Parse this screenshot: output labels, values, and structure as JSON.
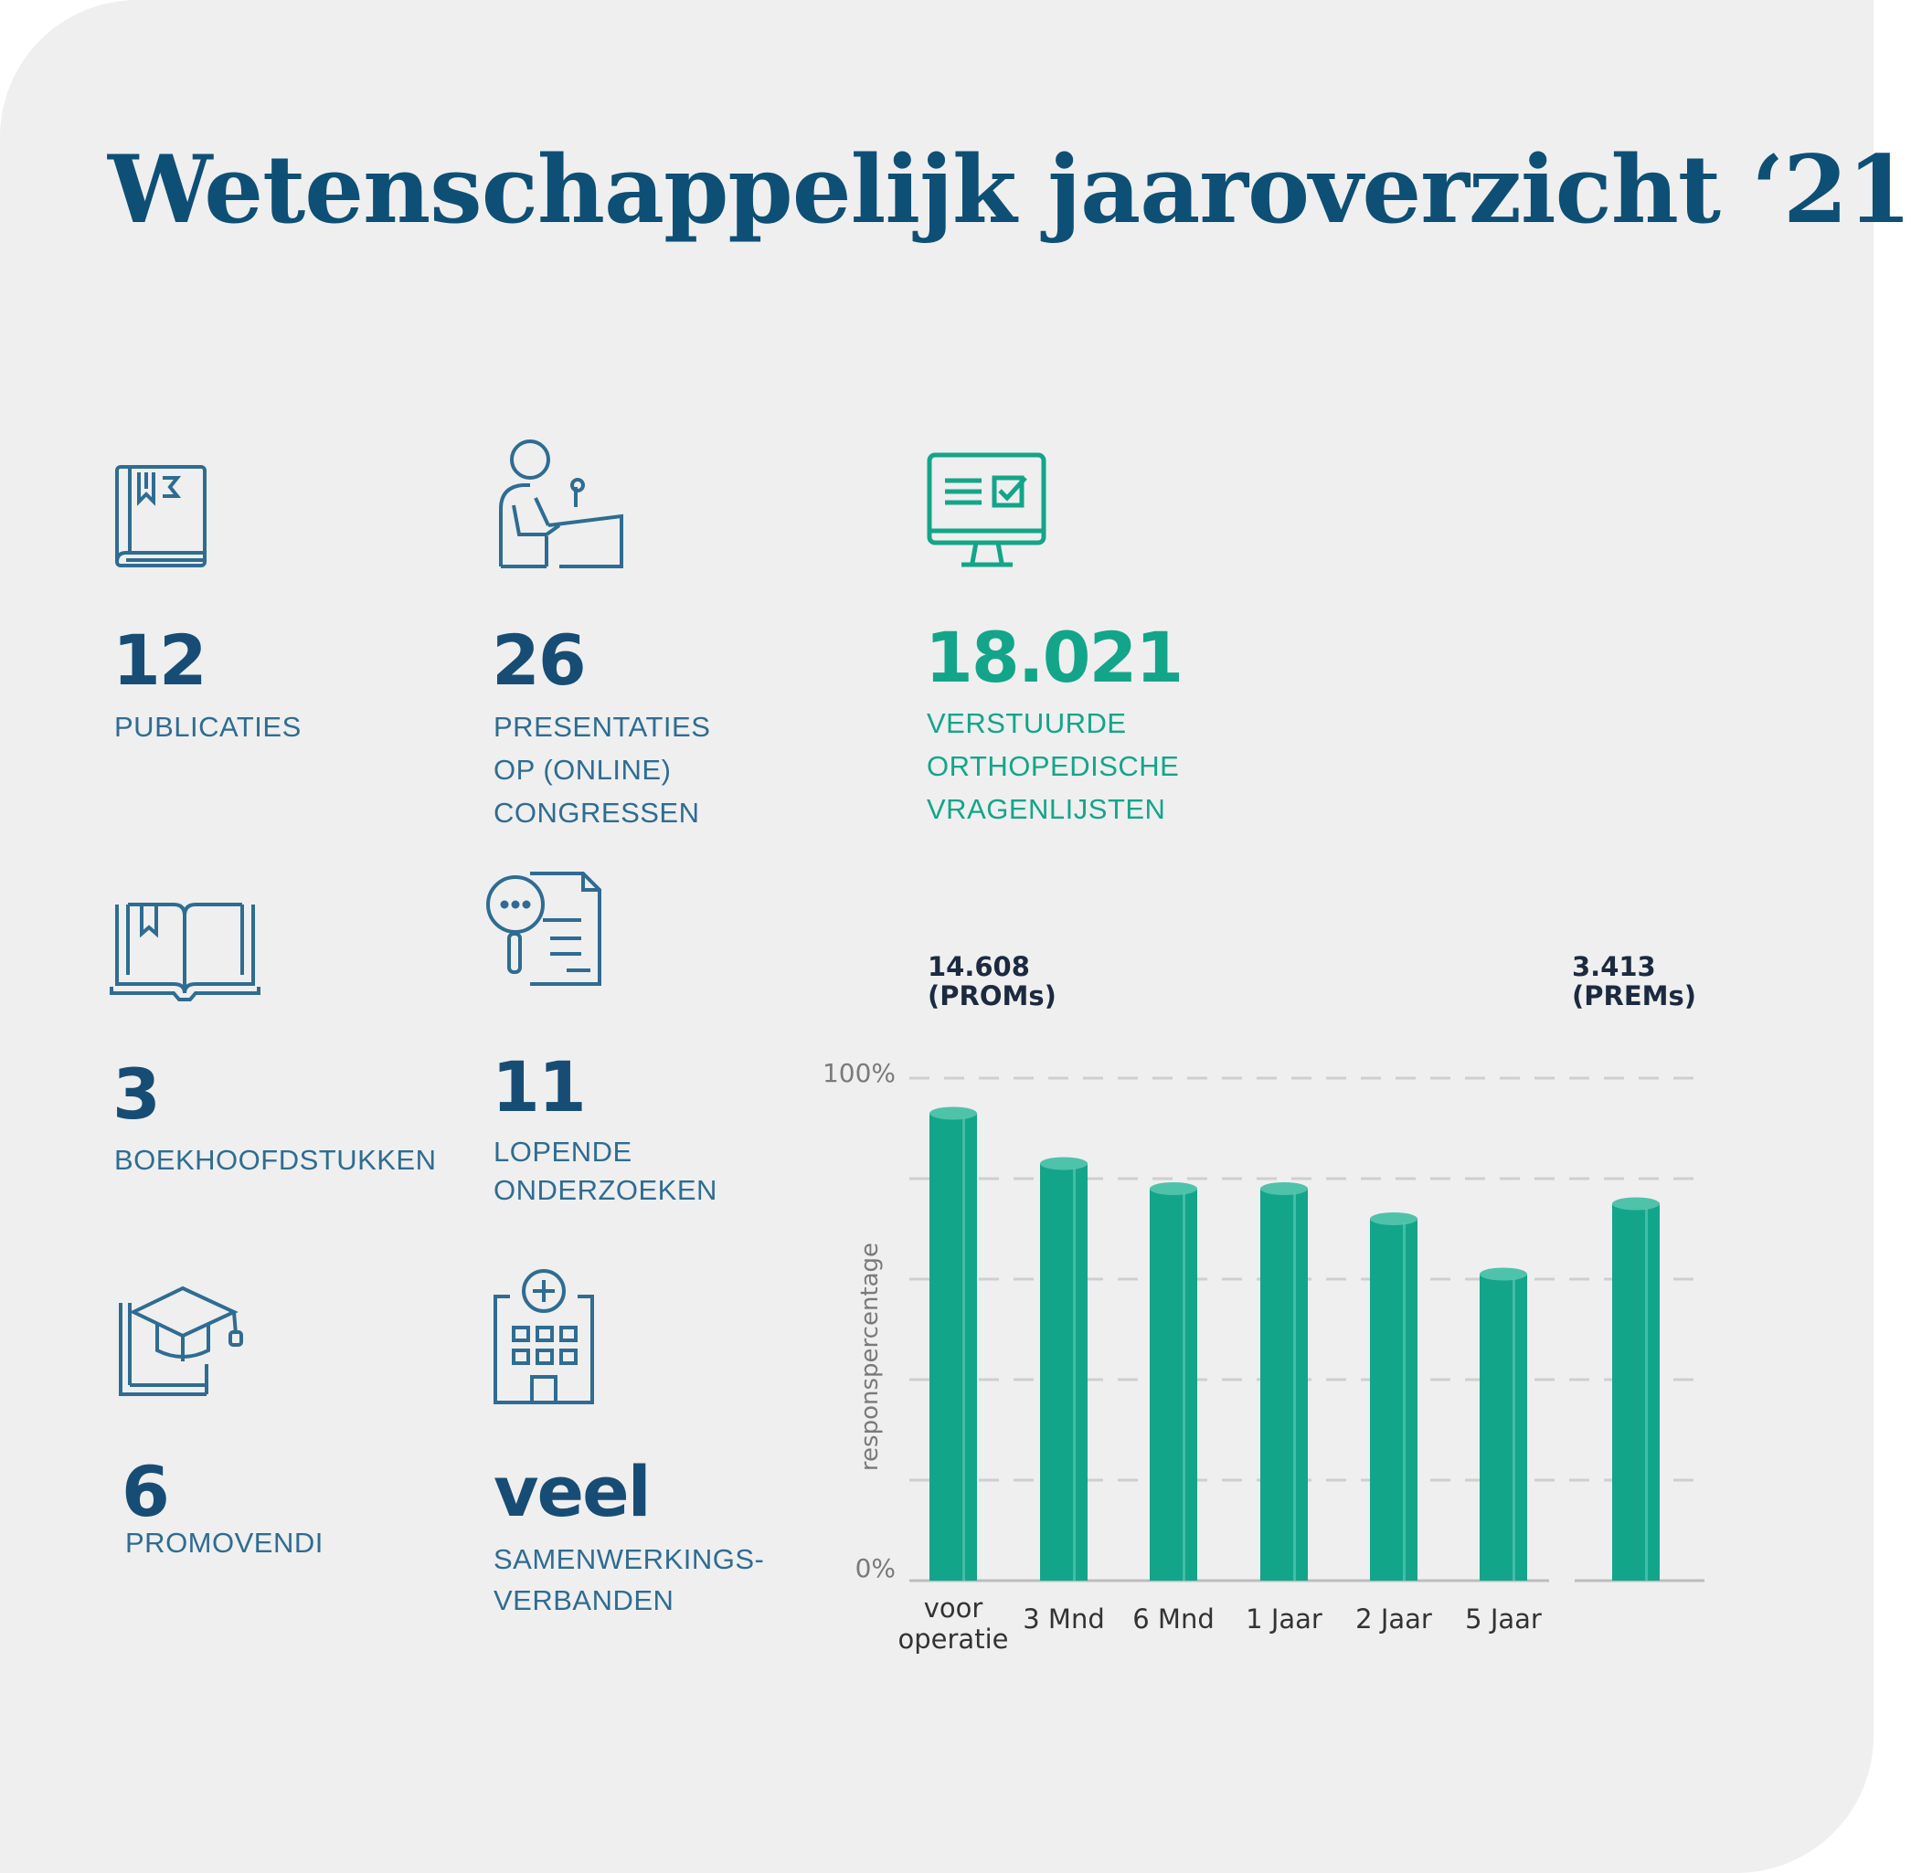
{
  "title": "Wetenschappelijk jaaroverzicht ‘21",
  "stats": {
    "publicaties": {
      "number": "12",
      "label": [
        "PUBLICATIES"
      ],
      "icon": "book-icon"
    },
    "presentaties": {
      "number": "26",
      "label": [
        "PRESENTATIES",
        "OP (ONLINE)",
        "CONGRESSEN"
      ],
      "icon": "presenter-icon"
    },
    "vragenlijsten": {
      "number": "18.021",
      "label": [
        "VERSTUURDE",
        "ORTHOPEDISCHE",
        "VRAGENLIJSTEN"
      ],
      "icon": "computer-checklist-icon"
    },
    "boekhoofdstukken": {
      "number": "3",
      "label": [
        "BOEKHOOFDSTUKKEN"
      ],
      "icon": "open-book-icon"
    },
    "onderzoeken": {
      "number": "11",
      "label": [
        "LOPENDE",
        "ONDERZOEKEN"
      ],
      "icon": "research-document-icon"
    },
    "promovendi": {
      "number": "6",
      "label": [
        "PROMOVENDI"
      ],
      "icon": "graduation-cap-icon"
    },
    "samenwerkingen": {
      "number": "veel",
      "label": [
        "SAMENWERKINGS-",
        "VERBANDEN"
      ],
      "icon": "hospital-icon"
    }
  },
  "colors": {
    "navy": "#174d75",
    "teal": "#13a58a",
    "label": "#2e6c93",
    "background": "#efefef"
  },
  "chart_data": {
    "type": "bar",
    "ylabel": "responspercentage",
    "ylim": [
      0,
      100
    ],
    "ytick_labels": [
      "0%",
      "100%"
    ],
    "grid": true,
    "groups": [
      {
        "label": [
          "14.608",
          "(PROMs)"
        ]
      },
      {
        "label": [
          "3.413",
          "(PREMs)"
        ]
      }
    ],
    "categories": [
      {
        "label": [
          "voor",
          "operatie"
        ],
        "value": 93,
        "group": 0
      },
      {
        "label": [
          "3 Mnd"
        ],
        "value": 83,
        "group": 0
      },
      {
        "label": [
          "6 Mnd"
        ],
        "value": 78,
        "group": 0
      },
      {
        "label": [
          "1 Jaar"
        ],
        "value": 78,
        "group": 0
      },
      {
        "label": [
          "2 Jaar"
        ],
        "value": 72,
        "group": 0
      },
      {
        "label": [
          "5 Jaar"
        ],
        "value": 61,
        "group": 0
      },
      {
        "label": [],
        "value": 75,
        "group": 1
      }
    ]
  }
}
